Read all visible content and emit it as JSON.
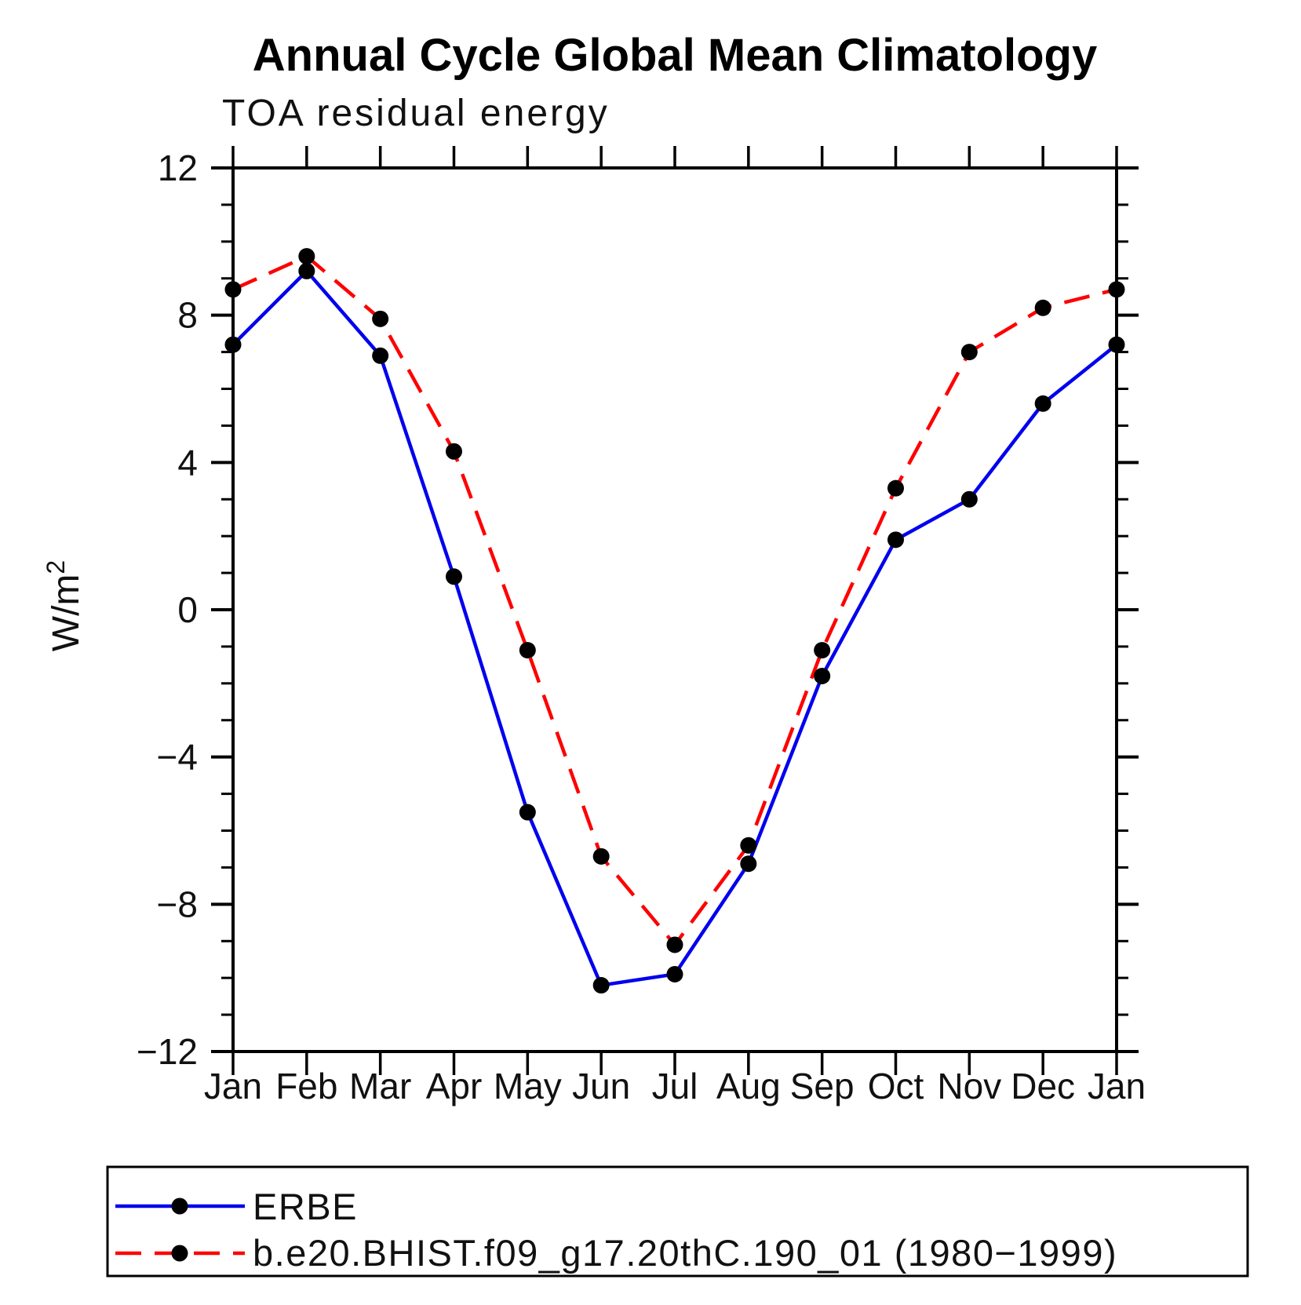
{
  "header": {
    "title": "Annual Cycle Global Mean Climatology"
  },
  "chart": {
    "subtitle": "TOA residual energy",
    "ylabel_base": "W/m",
    "ylabel_exp": "2"
  },
  "colors": {
    "erbe_line": "#0000ee",
    "model_line": "#ff0000",
    "marker": "#000000",
    "axis": "#000000"
  },
  "chart_data": {
    "type": "line",
    "title": "Annual Cycle Global Mean Climatology",
    "subtitle": "TOA residual energy",
    "ylabel": "W/m²",
    "xlabel": "",
    "categories": [
      "Jan",
      "Feb",
      "Mar",
      "Apr",
      "May",
      "Jun",
      "Jul",
      "Aug",
      "Sep",
      "Oct",
      "Nov",
      "Dec",
      "Jan"
    ],
    "series": [
      {
        "name": "ERBE",
        "color": "#0000ee",
        "style": "solid",
        "marker": "black-dot",
        "values": [
          7.2,
          9.2,
          6.9,
          0.9,
          -5.5,
          -10.2,
          -9.9,
          -6.9,
          -1.8,
          1.9,
          3.0,
          5.6,
          7.2
        ]
      },
      {
        "name": "b.e20.BHIST.f09_g17.20thC.190_01 (1980−1999)",
        "color": "#ff0000",
        "style": "dashed",
        "marker": "black-dot",
        "values": [
          8.7,
          9.6,
          7.9,
          4.3,
          -1.1,
          -6.7,
          -9.1,
          -6.4,
          -1.1,
          3.3,
          7.0,
          8.2,
          8.7
        ]
      }
    ],
    "ylim": [
      -12,
      12
    ],
    "ytick_major": [
      12,
      8,
      4,
      0,
      -4,
      -8,
      -12
    ],
    "ytick_labels": [
      "12",
      "8",
      "4",
      "0",
      "−4",
      "−8",
      "−12"
    ],
    "ytick_minor_step": 1,
    "grid": false,
    "legend_position": "bottom"
  }
}
